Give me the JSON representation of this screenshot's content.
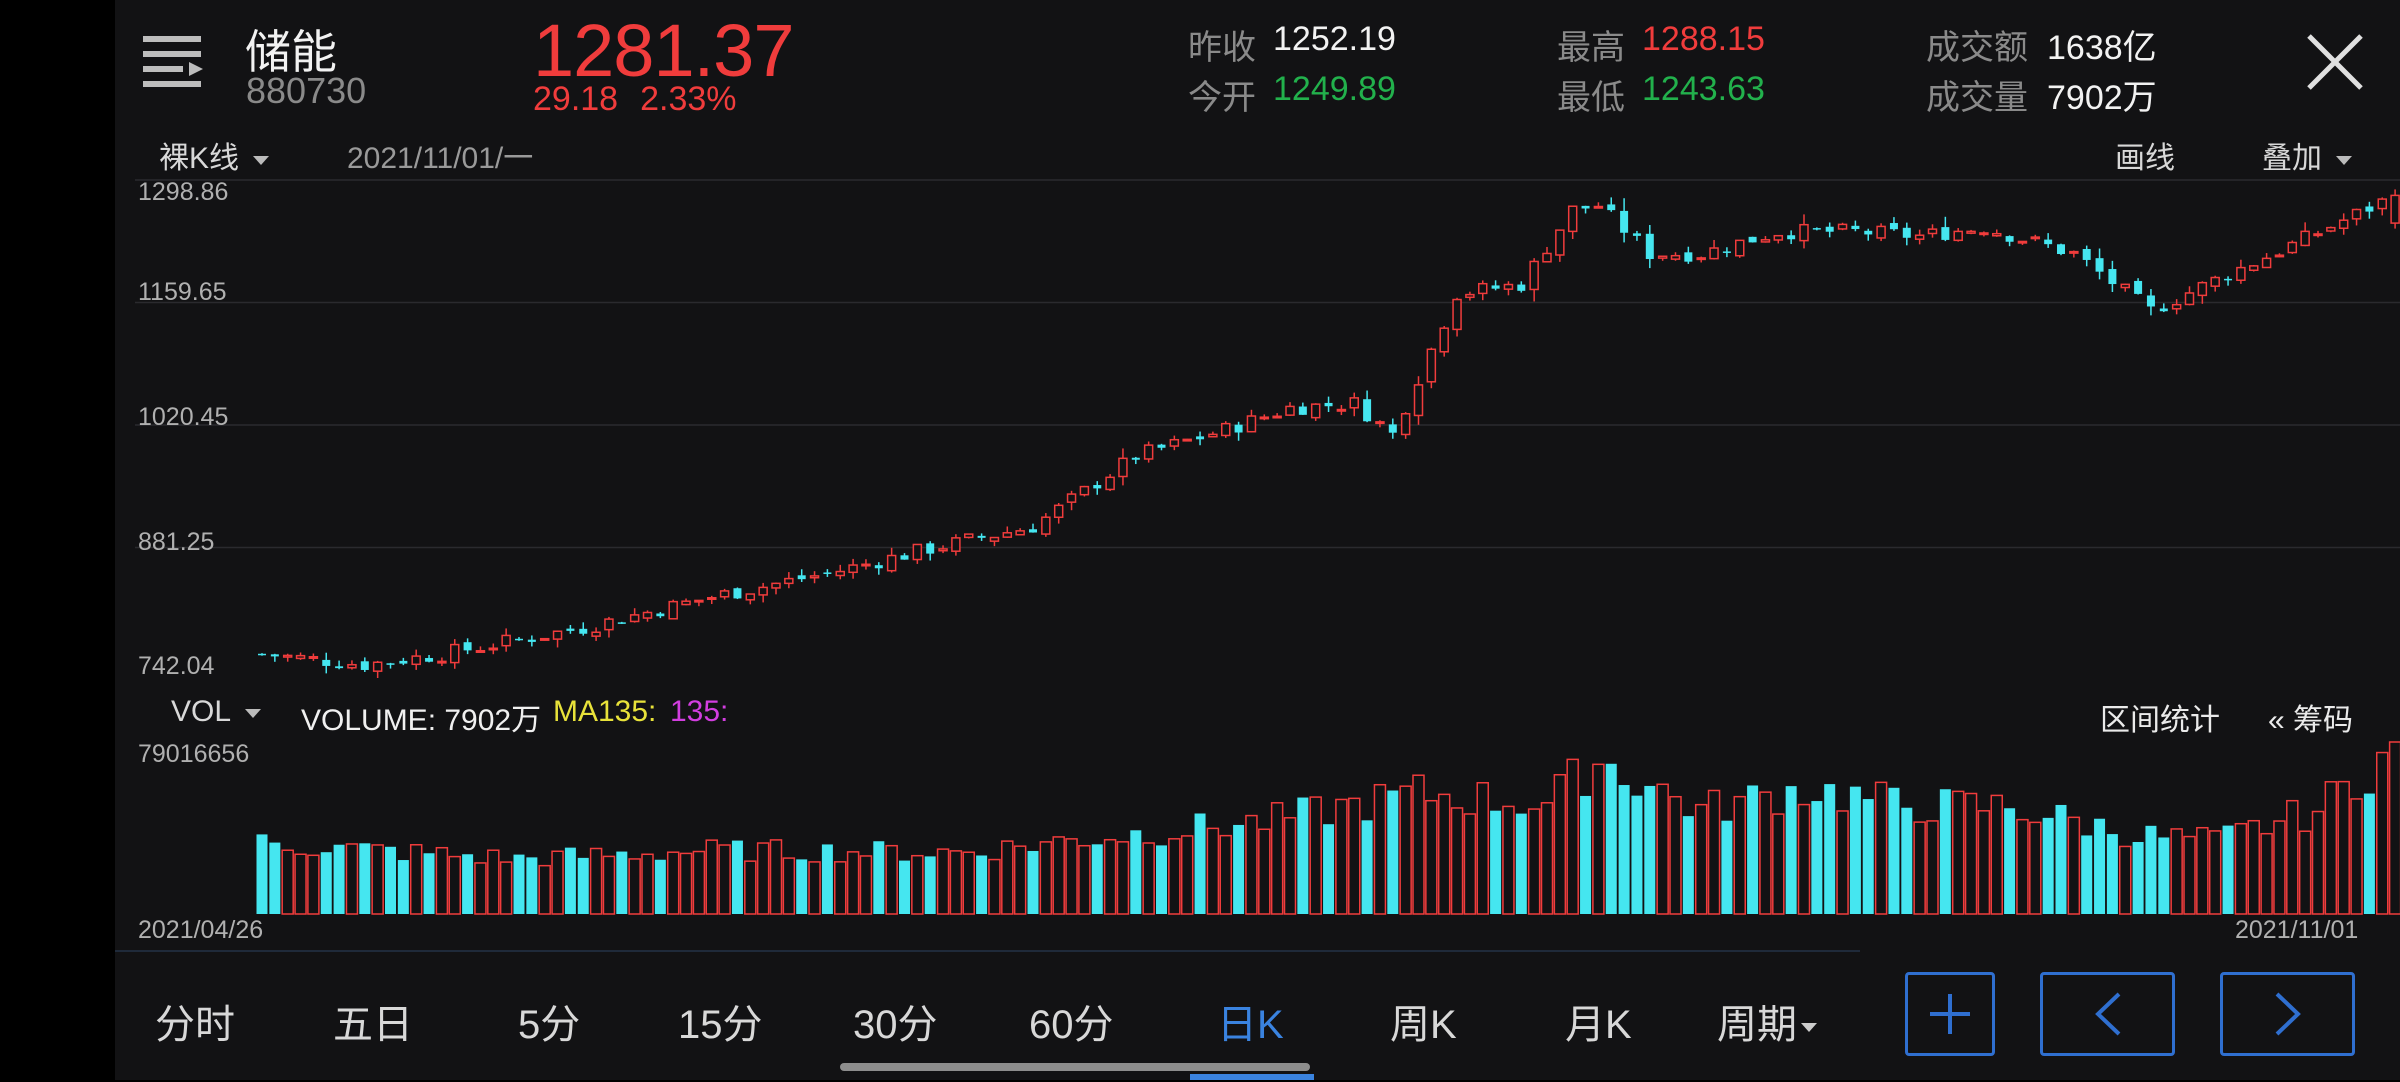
{
  "header": {
    "name": "储能",
    "code": "880730",
    "price": "1281.37",
    "change": "29.18",
    "change_pct": "2.33%",
    "stats": {
      "prev_close_label": "昨收",
      "prev_close": "1252.19",
      "open_label": "今开",
      "open": "1249.89",
      "high_label": "最高",
      "high": "1288.15",
      "low_label": "最低",
      "low": "1243.63",
      "turnover_label": "成交额",
      "turnover": "1638亿",
      "volume_label": "成交量",
      "volume": "7902万"
    }
  },
  "toolbar": {
    "kline_type": "裸K线",
    "date": "2021/11/01/一",
    "draw_label": "画线",
    "overlay_label": "叠加"
  },
  "price_axis": [
    "1298.86",
    "1159.65",
    "1020.45",
    "881.25",
    "742.04"
  ],
  "volume_panel": {
    "indicator": "VOL",
    "volume_text": "VOLUME: 7902万",
    "ma_label": "MA135:",
    "ma_value": "135:",
    "range_stats_label": "区间统计",
    "chips_label": "« 筹码",
    "max_label": "79016656",
    "start_date": "2021/04/26",
    "end_date": "2021/11/01"
  },
  "periods": [
    "分时",
    "五日",
    "5分",
    "15分",
    "30分",
    "60分",
    "日K",
    "周K",
    "月K",
    "周期"
  ],
  "active_period": "日K",
  "colors": {
    "up": "#f03c3c",
    "down": "#45e6f0",
    "green": "#22b14c",
    "accent": "#3a83e0",
    "bg": "#121214"
  },
  "icons": {
    "menu": "menu-icon",
    "close": "close-icon",
    "zoom_in": "plus-icon",
    "prev": "chevron-left-icon",
    "next": "chevron-right-icon"
  },
  "chart_data": {
    "type": "candlestick",
    "price_range": [
      742.04,
      1298.86
    ],
    "volume_max": 79016656,
    "anchors": [
      {
        "i": 0,
        "c": 760
      },
      {
        "i": 8,
        "c": 748
      },
      {
        "i": 14,
        "c": 760
      },
      {
        "i": 25,
        "c": 790
      },
      {
        "i": 35,
        "c": 825
      },
      {
        "i": 45,
        "c": 855
      },
      {
        "i": 52,
        "c": 880
      },
      {
        "i": 60,
        "c": 905
      },
      {
        "i": 68,
        "c": 985
      },
      {
        "i": 75,
        "c": 1015
      },
      {
        "i": 80,
        "c": 1040
      },
      {
        "i": 85,
        "c": 1045
      },
      {
        "i": 88,
        "c": 1010
      },
      {
        "i": 93,
        "c": 1170
      },
      {
        "i": 98,
        "c": 1180
      },
      {
        "i": 102,
        "c": 1265
      },
      {
        "i": 104,
        "c": 1270
      },
      {
        "i": 108,
        "c": 1215
      },
      {
        "i": 112,
        "c": 1215
      },
      {
        "i": 118,
        "c": 1240
      },
      {
        "i": 124,
        "c": 1240
      },
      {
        "i": 129,
        "c": 1235
      },
      {
        "i": 134,
        "c": 1245
      },
      {
        "i": 141,
        "c": 1215
      },
      {
        "i": 147,
        "c": 1150
      },
      {
        "i": 152,
        "c": 1185
      },
      {
        "i": 158,
        "c": 1225
      },
      {
        "i": 163,
        "c": 1260
      },
      {
        "i": 166,
        "c": 1281
      }
    ],
    "volume_anchors": [
      {
        "i": 0,
        "v": 0.42
      },
      {
        "i": 20,
        "v": 0.33
      },
      {
        "i": 35,
        "v": 0.38
      },
      {
        "i": 55,
        "v": 0.37
      },
      {
        "i": 64,
        "v": 0.45
      },
      {
        "i": 78,
        "v": 0.55
      },
      {
        "i": 90,
        "v": 0.72
      },
      {
        "i": 100,
        "v": 0.66
      },
      {
        "i": 104,
        "v": 0.92
      },
      {
        "i": 112,
        "v": 0.62
      },
      {
        "i": 120,
        "v": 0.75
      },
      {
        "i": 128,
        "v": 0.65
      },
      {
        "i": 136,
        "v": 0.64
      },
      {
        "i": 146,
        "v": 0.47
      },
      {
        "i": 152,
        "v": 0.44
      },
      {
        "i": 160,
        "v": 0.62
      },
      {
        "i": 166,
        "v": 1.0
      }
    ],
    "count": 167,
    "last": {
      "o": 1249.89,
      "h": 1288.15,
      "l": 1243.63,
      "c": 1281.37
    }
  }
}
